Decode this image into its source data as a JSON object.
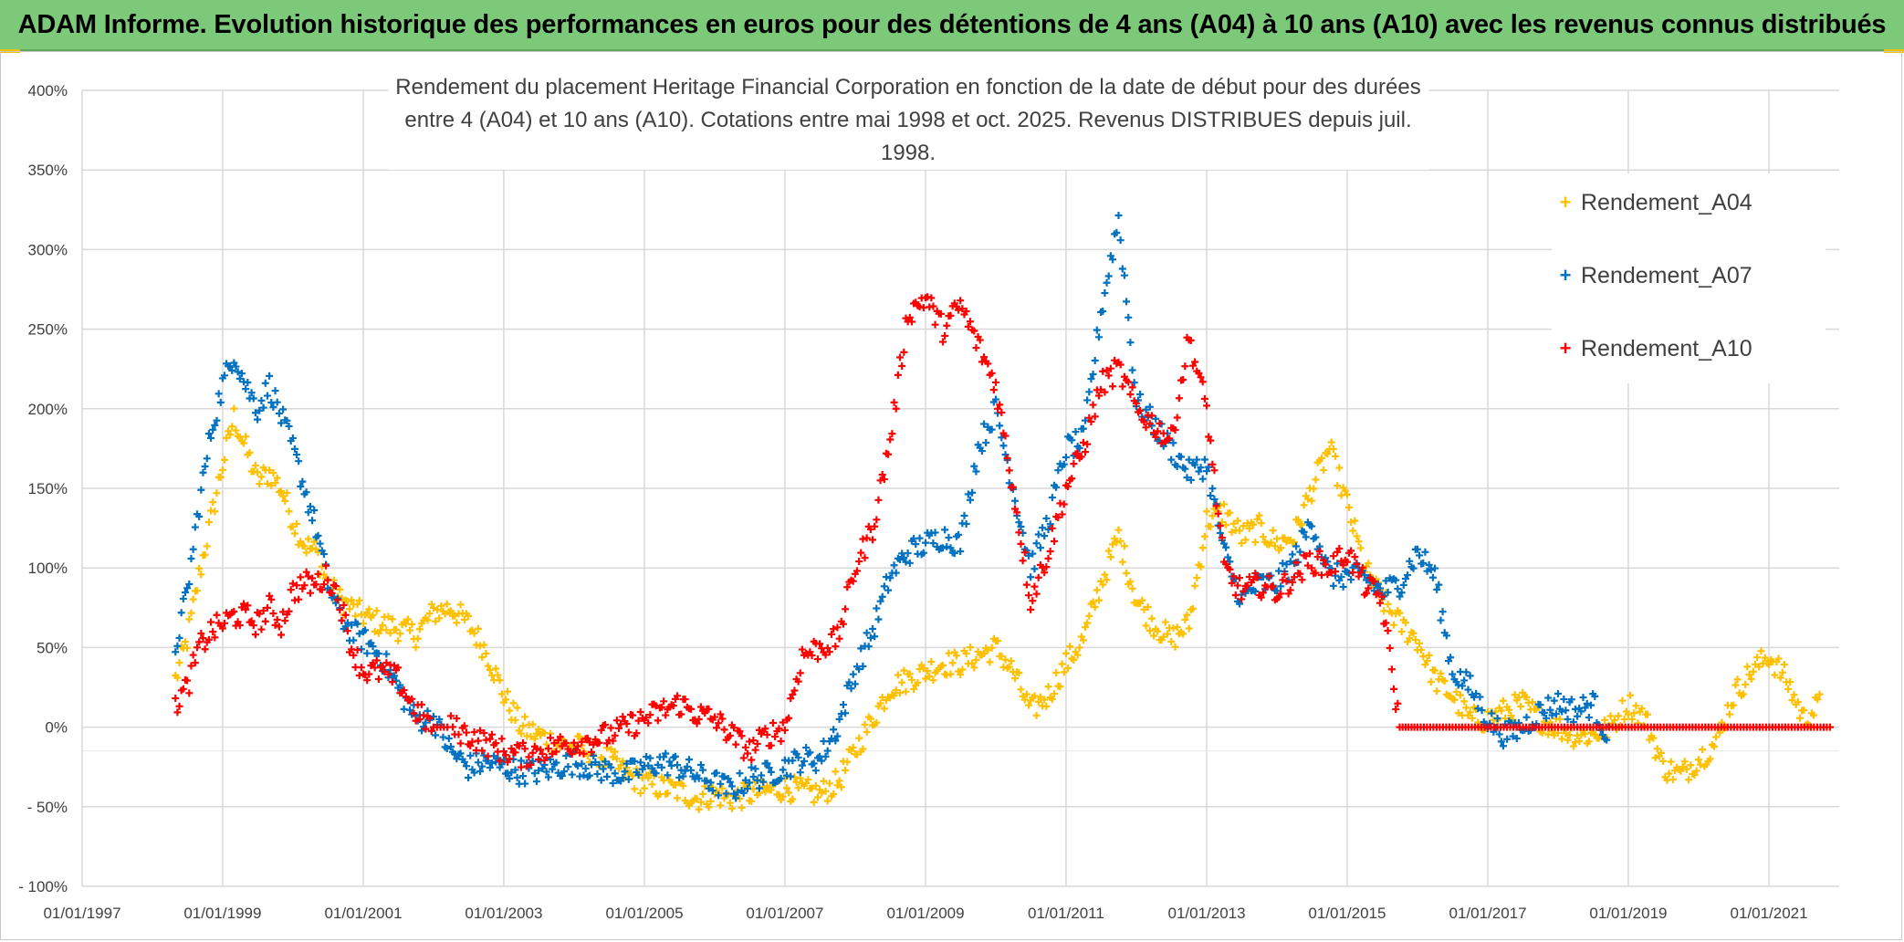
{
  "banner": {
    "title": "ADAM Informe. Evolution historique des performances en euros pour des détentions de 4 ans (A04) à 10 ans (A10) avec les revenus connus distribués"
  },
  "colors": {
    "banner_bg": "#7dc97a",
    "A04": "#ffc000",
    "A07": "#0070c0",
    "A10": "#ff0000",
    "grid": "#d9d9d9"
  },
  "chart_data": {
    "type": "scatter",
    "title_lines": [
      "Rendement du placement Heritage Financial Corporation en fonction de la date de début pour des durées",
      "entre 4 (A04) et 10 ans (A10). Cotations entre mai 1998 et oct. 2025. Revenus DISTRIBUES depuis juil. 1998."
    ],
    "x_ticks": [
      "01/01/1997",
      "01/01/1999",
      "01/01/2001",
      "01/01/2003",
      "01/01/2005",
      "01/01/2007",
      "01/01/2009",
      "01/01/2011",
      "01/01/2013",
      "01/01/2015",
      "01/01/2017",
      "01/01/2019",
      "01/01/2021"
    ],
    "y_ticks": [
      "- 100%",
      "- 50%",
      "0%",
      "50%",
      "100%",
      "150%",
      "200%",
      "250%",
      "300%",
      "350%",
      "400%"
    ],
    "xlim": [
      "1997-01-01",
      "2022-01-01"
    ],
    "ylim": [
      -100,
      400
    ],
    "y_unit": "%",
    "legend_position": "right",
    "marker": "+",
    "series": [
      {
        "name": "Rendement_A04",
        "color": "#ffc000",
        "points": [
          [
            "1998-05-01",
            30
          ],
          [
            "1998-07-01",
            55
          ],
          [
            "1998-09-01",
            95
          ],
          [
            "1998-11-01",
            130
          ],
          [
            "1999-01-01",
            165
          ],
          [
            "1999-03-01",
            195
          ],
          [
            "1999-05-01",
            175
          ],
          [
            "1999-07-01",
            155
          ],
          [
            "1999-09-01",
            160
          ],
          [
            "1999-11-01",
            150
          ],
          [
            "2000-01-01",
            130
          ],
          [
            "2000-03-01",
            115
          ],
          [
            "2000-05-01",
            110
          ],
          [
            "2000-07-01",
            90
          ],
          [
            "2000-09-01",
            80
          ],
          [
            "2000-11-01",
            75
          ],
          [
            "2001-01-01",
            70
          ],
          [
            "2001-04-01",
            65
          ],
          [
            "2001-07-01",
            62
          ],
          [
            "2001-10-01",
            58
          ],
          [
            "2002-01-01",
            72
          ],
          [
            "2002-04-01",
            75
          ],
          [
            "2002-07-01",
            65
          ],
          [
            "2002-10-01",
            48
          ],
          [
            "2003-01-01",
            20
          ],
          [
            "2003-04-01",
            0
          ],
          [
            "2003-07-01",
            -5
          ],
          [
            "2003-10-01",
            -10
          ],
          [
            "2004-01-01",
            -12
          ],
          [
            "2004-04-01",
            -15
          ],
          [
            "2004-07-01",
            -20
          ],
          [
            "2004-10-01",
            -30
          ],
          [
            "2005-01-01",
            -35
          ],
          [
            "2005-04-01",
            -38
          ],
          [
            "2005-07-01",
            -40
          ],
          [
            "2005-10-01",
            -45
          ],
          [
            "2006-01-01",
            -42
          ],
          [
            "2006-04-01",
            -45
          ],
          [
            "2006-07-01",
            -42
          ],
          [
            "2006-10-01",
            -40
          ],
          [
            "2007-01-01",
            -38
          ],
          [
            "2007-04-01",
            -40
          ],
          [
            "2007-07-01",
            -42
          ],
          [
            "2007-10-01",
            -35
          ],
          [
            "2008-01-01",
            -15
          ],
          [
            "2008-04-01",
            5
          ],
          [
            "2008-07-01",
            25
          ],
          [
            "2008-10-01",
            30
          ],
          [
            "2009-01-01",
            35
          ],
          [
            "2009-04-01",
            40
          ],
          [
            "2009-07-01",
            40
          ],
          [
            "2009-10-01",
            45
          ],
          [
            "2010-01-01",
            50
          ],
          [
            "2010-04-01",
            35
          ],
          [
            "2010-07-01",
            10
          ],
          [
            "2010-10-01",
            20
          ],
          [
            "2011-01-01",
            40
          ],
          [
            "2011-04-01",
            55
          ],
          [
            "2011-07-01",
            90
          ],
          [
            "2011-10-01",
            120
          ],
          [
            "2012-01-01",
            80
          ],
          [
            "2012-04-01",
            65
          ],
          [
            "2012-07-01",
            55
          ],
          [
            "2012-10-01",
            65
          ],
          [
            "2013-01-01",
            130
          ],
          [
            "2013-04-01",
            135
          ],
          [
            "2013-07-01",
            120
          ],
          [
            "2013-10-01",
            125
          ],
          [
            "2014-01-01",
            115
          ],
          [
            "2014-04-01",
            120
          ],
          [
            "2014-07-01",
            150
          ],
          [
            "2014-10-01",
            175
          ],
          [
            "2015-01-01",
            140
          ],
          [
            "2015-04-01",
            100
          ],
          [
            "2015-07-01",
            80
          ],
          [
            "2015-10-01",
            65
          ],
          [
            "2016-01-01",
            55
          ],
          [
            "2016-04-01",
            30
          ],
          [
            "2016-07-01",
            20
          ],
          [
            "2016-10-01",
            5
          ],
          [
            "2017-01-01",
            5
          ],
          [
            "2017-04-01",
            10
          ],
          [
            "2017-07-01",
            15
          ],
          [
            "2017-10-01",
            5
          ],
          [
            "2018-01-01",
            0
          ],
          [
            "2018-04-01",
            -5
          ],
          [
            "2018-07-01",
            -5
          ],
          [
            "2018-10-01",
            0
          ],
          [
            "2019-01-01",
            15
          ],
          [
            "2019-04-01",
            5
          ],
          [
            "2019-07-01",
            -25
          ],
          [
            "2019-10-01",
            -30
          ],
          [
            "2020-01-01",
            -20
          ],
          [
            "2020-04-01",
            -10
          ],
          [
            "2020-07-01",
            20
          ],
          [
            "2020-10-01",
            35
          ],
          [
            "2021-01-01",
            45
          ],
          [
            "2021-04-01",
            30
          ],
          [
            "2021-07-01",
            5
          ],
          [
            "2021-10-01",
            15
          ]
        ]
      },
      {
        "name": "Rendement_A07",
        "color": "#0070c0",
        "points": [
          [
            "1998-05-01",
            50
          ],
          [
            "1998-07-01",
            85
          ],
          [
            "1998-09-01",
            140
          ],
          [
            "1998-11-01",
            185
          ],
          [
            "1999-01-01",
            215
          ],
          [
            "1999-03-01",
            235
          ],
          [
            "1999-05-01",
            215
          ],
          [
            "1999-07-01",
            200
          ],
          [
            "1999-09-01",
            215
          ],
          [
            "1999-11-01",
            195
          ],
          [
            "2000-01-01",
            175
          ],
          [
            "2000-03-01",
            150
          ],
          [
            "2000-05-01",
            125
          ],
          [
            "2000-07-01",
            90
          ],
          [
            "2000-09-01",
            70
          ],
          [
            "2000-11-01",
            60
          ],
          [
            "2001-01-01",
            55
          ],
          [
            "2001-04-01",
            45
          ],
          [
            "2001-07-01",
            25
          ],
          [
            "2001-10-01",
            5
          ],
          [
            "2002-01-01",
            5
          ],
          [
            "2002-04-01",
            -15
          ],
          [
            "2002-07-01",
            -25
          ],
          [
            "2002-10-01",
            -22
          ],
          [
            "2003-01-01",
            -25
          ],
          [
            "2003-04-01",
            -28
          ],
          [
            "2003-07-01",
            -28
          ],
          [
            "2003-10-01",
            -25
          ],
          [
            "2004-01-01",
            -22
          ],
          [
            "2004-04-01",
            -25
          ],
          [
            "2004-07-01",
            -28
          ],
          [
            "2004-10-01",
            -30
          ],
          [
            "2005-01-01",
            -25
          ],
          [
            "2005-04-01",
            -22
          ],
          [
            "2005-07-01",
            -25
          ],
          [
            "2005-10-01",
            -30
          ],
          [
            "2006-01-01",
            -35
          ],
          [
            "2006-04-01",
            -40
          ],
          [
            "2006-07-01",
            -32
          ],
          [
            "2006-10-01",
            -30
          ],
          [
            "2007-01-01",
            -25
          ],
          [
            "2007-04-01",
            -20
          ],
          [
            "2007-07-01",
            -20
          ],
          [
            "2007-10-01",
            0
          ],
          [
            "2008-01-01",
            35
          ],
          [
            "2008-04-01",
            60
          ],
          [
            "2008-07-01",
            95
          ],
          [
            "2008-10-01",
            110
          ],
          [
            "2009-01-01",
            115
          ],
          [
            "2009-04-01",
            120
          ],
          [
            "2009-07-01",
            115
          ],
          [
            "2009-10-01",
            175
          ],
          [
            "2010-01-01",
            200
          ],
          [
            "2010-04-01",
            150
          ],
          [
            "2010-07-01",
            100
          ],
          [
            "2010-10-01",
            130
          ],
          [
            "2011-01-01",
            175
          ],
          [
            "2011-04-01",
            180
          ],
          [
            "2011-07-01",
            260
          ],
          [
            "2011-10-01",
            320
          ],
          [
            "2012-01-01",
            205
          ],
          [
            "2012-04-01",
            190
          ],
          [
            "2012-07-01",
            175
          ],
          [
            "2012-10-01",
            160
          ],
          [
            "2013-01-01",
            165
          ],
          [
            "2013-04-01",
            110
          ],
          [
            "2013-07-01",
            80
          ],
          [
            "2013-10-01",
            90
          ],
          [
            "2014-01-01",
            90
          ],
          [
            "2014-04-01",
            105
          ],
          [
            "2014-07-01",
            130
          ],
          [
            "2014-10-01",
            95
          ],
          [
            "2015-01-01",
            95
          ],
          [
            "2015-04-01",
            95
          ],
          [
            "2015-07-01",
            85
          ],
          [
            "2015-10-01",
            90
          ],
          [
            "2016-01-01",
            110
          ],
          [
            "2016-04-01",
            95
          ],
          [
            "2016-07-01",
            35
          ],
          [
            "2016-10-01",
            25
          ],
          [
            "2017-01-01",
            5
          ],
          [
            "2017-04-01",
            -5
          ],
          [
            "2017-07-01",
            0
          ],
          [
            "2017-10-01",
            10
          ],
          [
            "2018-01-01",
            15
          ],
          [
            "2018-04-01",
            10
          ],
          [
            "2018-07-01",
            15
          ],
          [
            "2018-10-01",
            -10
          ]
        ]
      },
      {
        "name": "Rendement_A10",
        "color": "#ff0000",
        "points": [
          [
            "1998-05-01",
            15
          ],
          [
            "1998-07-01",
            25
          ],
          [
            "1998-09-01",
            50
          ],
          [
            "1998-11-01",
            60
          ],
          [
            "1999-01-01",
            65
          ],
          [
            "1999-03-01",
            70
          ],
          [
            "1999-05-01",
            70
          ],
          [
            "1999-07-01",
            65
          ],
          [
            "1999-09-01",
            75
          ],
          [
            "1999-11-01",
            65
          ],
          [
            "2000-01-01",
            85
          ],
          [
            "2000-03-01",
            90
          ],
          [
            "2000-05-01",
            90
          ],
          [
            "2000-07-01",
            95
          ],
          [
            "2000-09-01",
            80
          ],
          [
            "2000-11-01",
            50
          ],
          [
            "2001-01-01",
            35
          ],
          [
            "2001-04-01",
            35
          ],
          [
            "2001-07-01",
            30
          ],
          [
            "2001-10-01",
            10
          ],
          [
            "2002-01-01",
            0
          ],
          [
            "2002-04-01",
            0
          ],
          [
            "2002-07-01",
            -5
          ],
          [
            "2002-10-01",
            -10
          ],
          [
            "2003-01-01",
            -15
          ],
          [
            "2003-04-01",
            -18
          ],
          [
            "2003-07-01",
            -15
          ],
          [
            "2003-10-01",
            -12
          ],
          [
            "2004-01-01",
            -10
          ],
          [
            "2004-04-01",
            -8
          ],
          [
            "2004-07-01",
            -5
          ],
          [
            "2004-10-01",
            0
          ],
          [
            "2005-01-01",
            5
          ],
          [
            "2005-04-01",
            10
          ],
          [
            "2005-07-01",
            15
          ],
          [
            "2005-10-01",
            8
          ],
          [
            "2006-01-01",
            5
          ],
          [
            "2006-04-01",
            -5
          ],
          [
            "2006-07-01",
            -15
          ],
          [
            "2006-10-01",
            -5
          ],
          [
            "2007-01-01",
            0
          ],
          [
            "2007-04-01",
            45
          ],
          [
            "2007-07-01",
            50
          ],
          [
            "2007-10-01",
            55
          ],
          [
            "2008-01-01",
            100
          ],
          [
            "2008-04-01",
            125
          ],
          [
            "2008-07-01",
            180
          ],
          [
            "2008-10-01",
            260
          ],
          [
            "2009-01-01",
            270
          ],
          [
            "2009-04-01",
            250
          ],
          [
            "2009-07-01",
            265
          ],
          [
            "2009-10-01",
            240
          ],
          [
            "2010-01-01",
            215
          ],
          [
            "2010-04-01",
            150
          ],
          [
            "2010-07-01",
            80
          ],
          [
            "2010-10-01",
            110
          ],
          [
            "2011-01-01",
            150
          ],
          [
            "2011-04-01",
            175
          ],
          [
            "2011-07-01",
            215
          ],
          [
            "2011-10-01",
            225
          ],
          [
            "2012-01-01",
            200
          ],
          [
            "2012-04-01",
            190
          ],
          [
            "2012-07-01",
            180
          ],
          [
            "2012-10-01",
            245
          ],
          [
            "2013-01-01",
            200
          ],
          [
            "2013-04-01",
            100
          ],
          [
            "2013-07-01",
            85
          ],
          [
            "2013-10-01",
            90
          ],
          [
            "2014-01-01",
            85
          ],
          [
            "2014-04-01",
            95
          ],
          [
            "2014-07-01",
            105
          ],
          [
            "2014-10-01",
            100
          ],
          [
            "2015-01-01",
            110
          ],
          [
            "2015-04-01",
            90
          ],
          [
            "2015-07-01",
            80
          ],
          [
            "2015-10-01",
            0
          ],
          [
            "2016-01-01",
            0
          ],
          [
            "2021-12-01",
            0
          ]
        ]
      }
    ]
  }
}
